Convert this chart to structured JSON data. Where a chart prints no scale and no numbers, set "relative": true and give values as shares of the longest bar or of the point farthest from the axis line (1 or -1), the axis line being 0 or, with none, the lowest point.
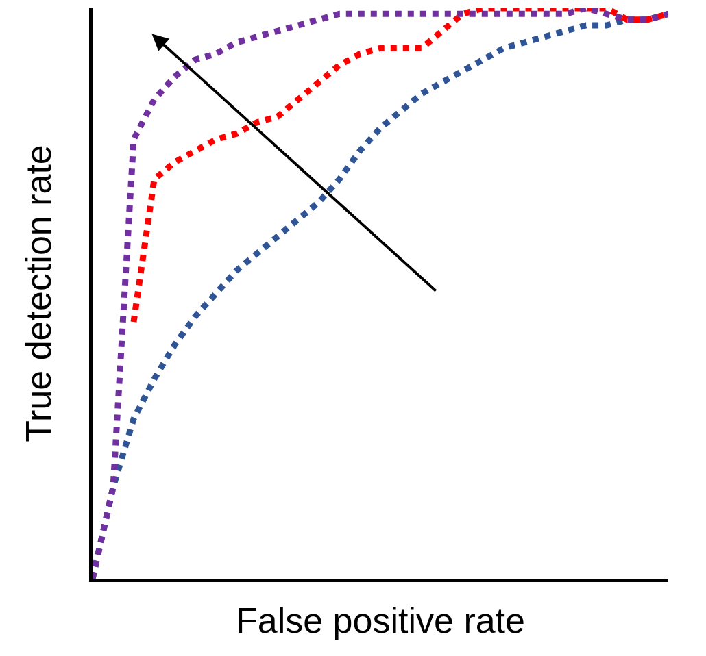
{
  "chart_data": {
    "type": "line",
    "relative": true,
    "xlabel": "False positive rate",
    "ylabel": "True detection rate",
    "categories": [
      null,
      null,
      null,
      null,
      null,
      null,
      null,
      null,
      null,
      null,
      null,
      null,
      null,
      null,
      null,
      null,
      null,
      null,
      null,
      null,
      null,
      null,
      null,
      null,
      null,
      null,
      null,
      null,
      null
    ],
    "series": [
      {
        "color": "#2f5597",
        "values": [
          0,
          0.16,
          0.28,
          0.35,
          0.41,
          0.46,
          0.5,
          0.54,
          0.57,
          0.6,
          0.63,
          0.66,
          0.7,
          0.75,
          0.79,
          0.82,
          0.85,
          0.87,
          0.89,
          0.91,
          0.93,
          0.94,
          0.95,
          0.96,
          0.97,
          0.97,
          0.98,
          0.98,
          0.99
        ]
      },
      {
        "color": "#ff0000",
        "values": [
          null,
          null,
          0.45,
          0.7,
          0.73,
          0.75,
          0.77,
          0.78,
          0.8,
          0.81,
          0.84,
          0.87,
          0.9,
          0.92,
          0.93,
          0.93,
          0.93,
          0.96,
          0.99,
          1.0,
          1.0,
          1.0,
          1.0,
          1.0,
          1.0,
          1.0,
          0.98,
          0.98,
          0.99
        ]
      },
      {
        "color": "#7030a0",
        "values": [
          0,
          0.16,
          0.77,
          0.84,
          0.88,
          0.91,
          0.92,
          0.94,
          0.95,
          0.96,
          0.97,
          0.98,
          0.99,
          0.99,
          0.99,
          0.99,
          0.99,
          0.99,
          0.99,
          0.99,
          0.99,
          0.99,
          0.99,
          0.99,
          1.0,
          0.99,
          0.98,
          0.98,
          0.99
        ]
      }
    ],
    "line_style": "dotted",
    "marker": "none",
    "grid": false,
    "tick_labels": false
  }
}
